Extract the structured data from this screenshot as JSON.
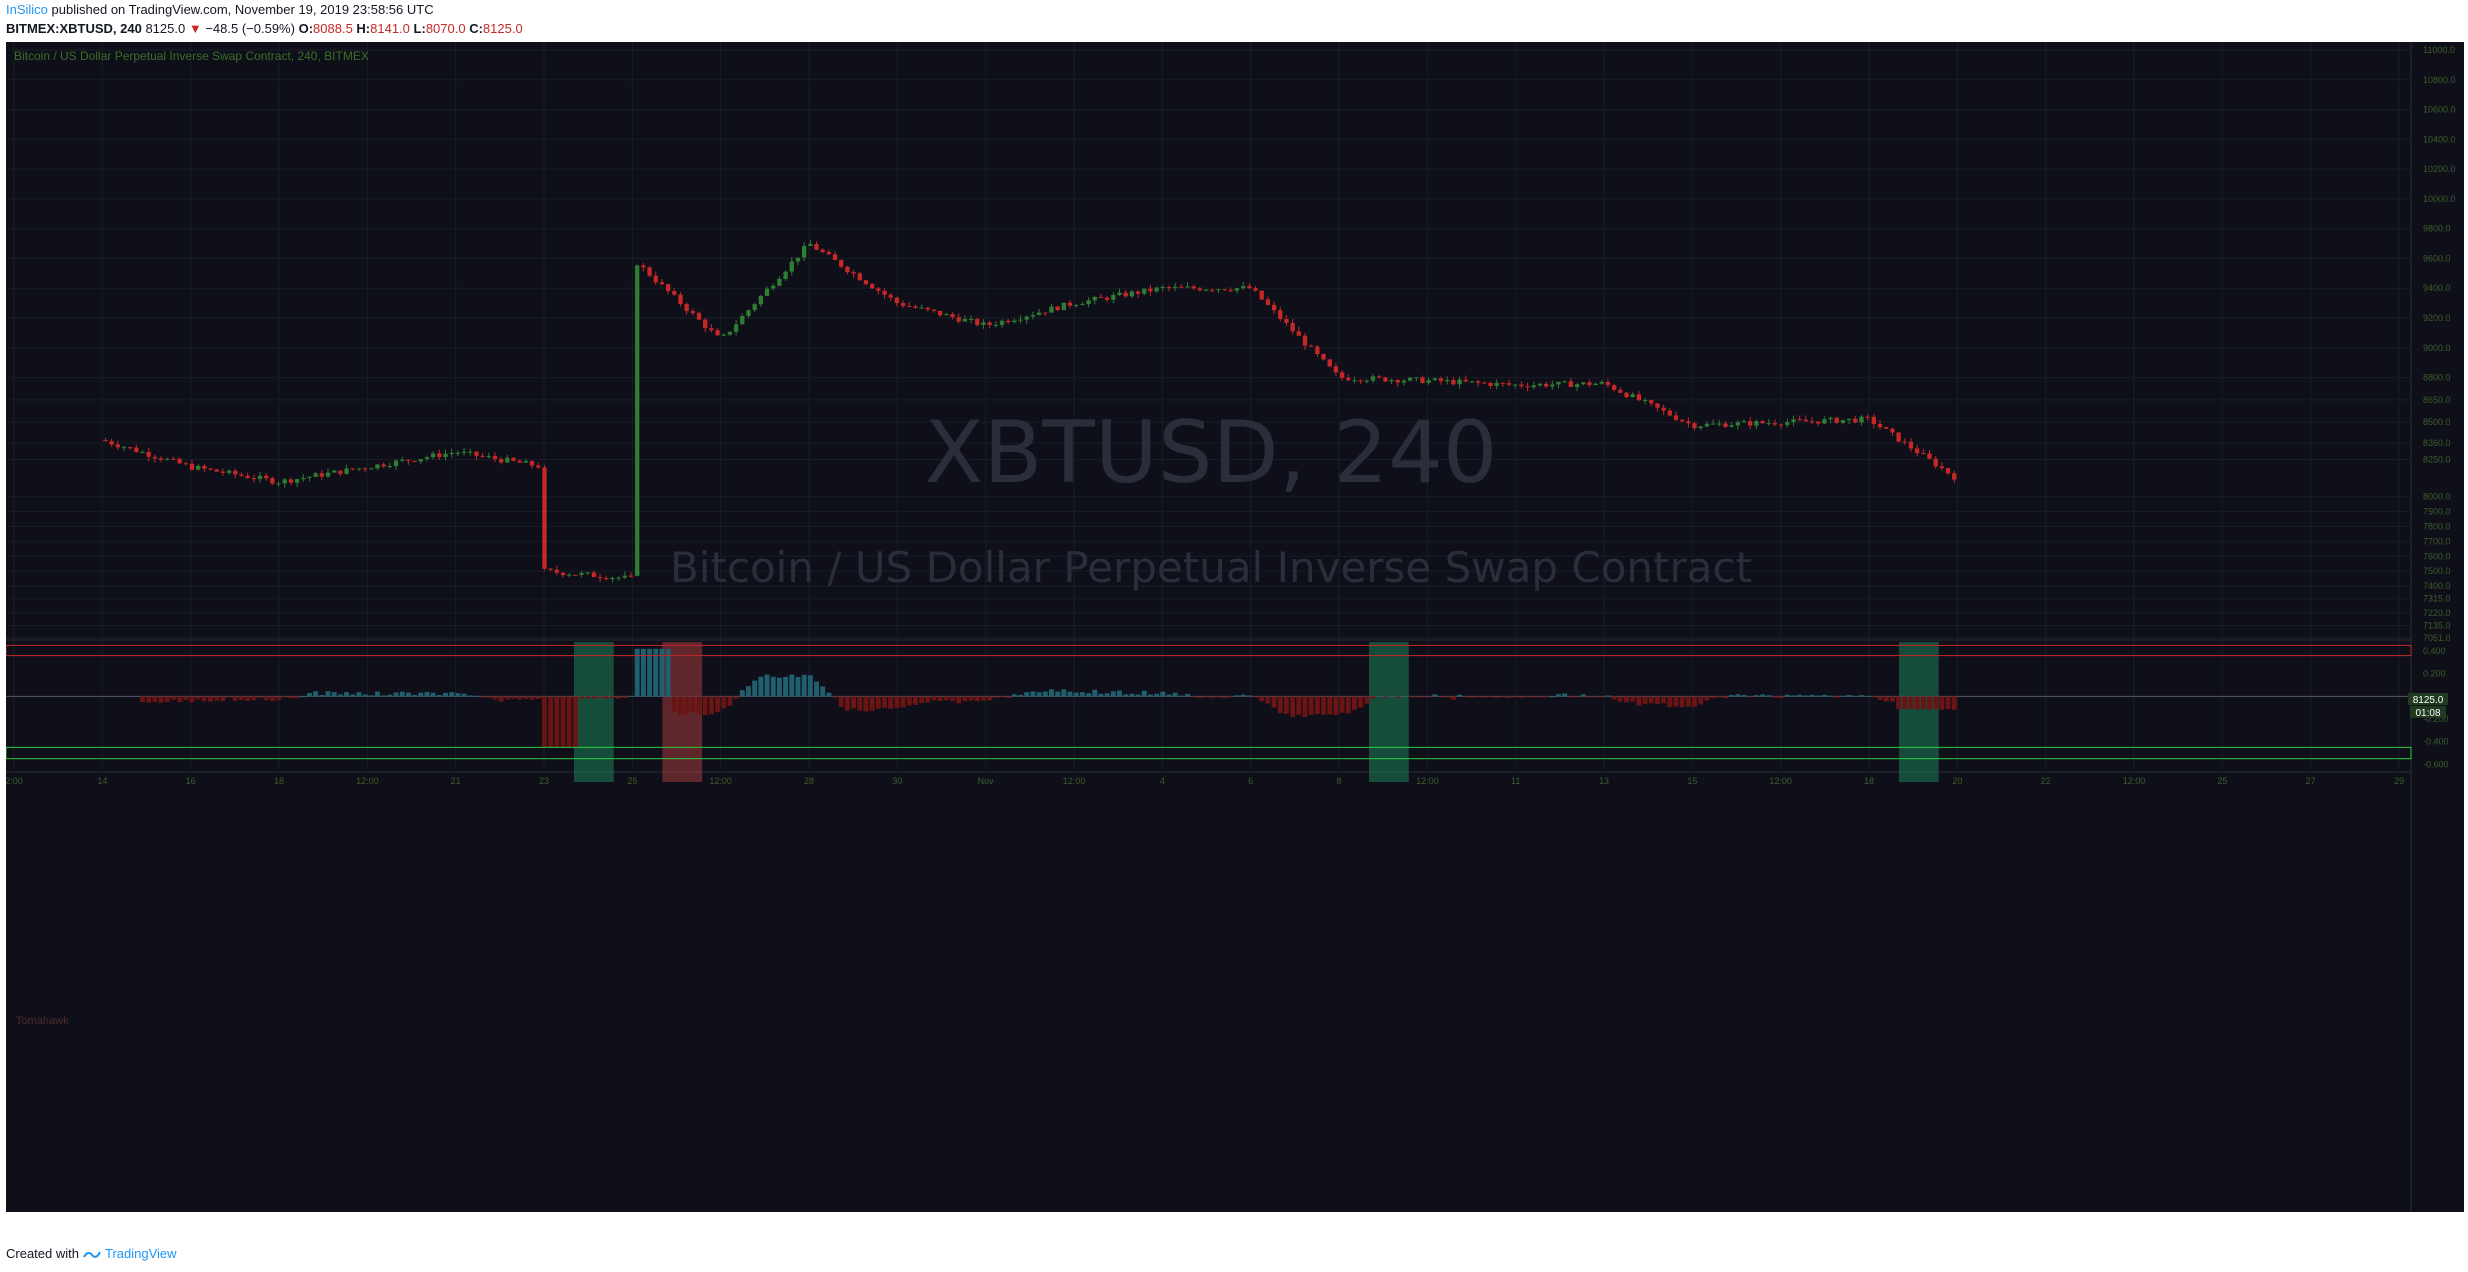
{
  "header": {
    "author": "InSilico",
    "published_text": "published on TradingView.com, November 19, 2019 23:58:56 UTC",
    "symbol": "BITMEX:XBTUSD, 240",
    "last": "8125.0",
    "change": "−48.5 (−0.59%)",
    "o_label": "O:",
    "o_val": "8088.5",
    "h_label": "H:",
    "h_val": "8141.0",
    "l_label": "L:",
    "l_val": "8070.0",
    "c_label": "C:",
    "c_val": "8125.0"
  },
  "footer": {
    "created_with": "Created with",
    "brand": "TradingView"
  },
  "colors": {
    "background": "#0f0f19",
    "grid": "#181c27",
    "up": "#2e7d32",
    "down": "#c62828",
    "axis_text": "#3b5e2a",
    "watermark": "#2a2d3a"
  },
  "chart_data": {
    "type": "candlestick",
    "title": "Bitcoin / US Dollar Perpetual Inverse Swap Contract, 240, BITMEX",
    "watermark_symbol": "XBTUSD, 240",
    "watermark_desc": "Bitcoin / US Dollar Perpetual Inverse Swap Contract",
    "last_price_label": "8125.0",
    "countdown_label": "01:08",
    "y_ticks": [
      "11000.0",
      "10800.0",
      "10600.0",
      "10400.0",
      "10200.0",
      "10000.0",
      "9800.0",
      "9600.0",
      "9400.0",
      "9200.0",
      "9000.0",
      "8800.0",
      "8650.0",
      "8500.0",
      "8360.0",
      "8250.0",
      "8000.0",
      "7900.0",
      "7800.0",
      "7700.0",
      "7600.0",
      "7500.0",
      "7400.0",
      "7315.0",
      "7220.0",
      "7135.0",
      "7051.0"
    ],
    "x_ticks": [
      "2:00",
      "14",
      "16",
      "18",
      "12:00",
      "21",
      "23",
      "25",
      "12:00",
      "28",
      "30",
      "Nov",
      "12:00",
      "4",
      "6",
      "8",
      "12:00",
      "11",
      "13",
      "15",
      "12:00",
      "18",
      "20",
      "22",
      "12:00",
      "25",
      "27",
      "29"
    ],
    "ylim": [
      7051,
      11000
    ],
    "anchors": [
      [
        "14",
        8380
      ],
      [
        "16",
        8200
      ],
      [
        "18",
        8100
      ],
      [
        "21",
        8300
      ],
      [
        "23",
        8200
      ],
      [
        "23",
        7500
      ],
      [
        "25",
        7450
      ],
      [
        "25",
        8200
      ],
      [
        "25",
        9600
      ],
      [
        "12:00",
        9050
      ],
      [
        "28",
        9700
      ],
      [
        "30",
        9300
      ],
      [
        "Nov",
        9150
      ],
      [
        "12:00",
        9300
      ],
      [
        "4",
        9400
      ],
      [
        "6",
        9400
      ],
      [
        "8",
        8800
      ],
      [
        "12:00",
        8780
      ],
      [
        "11",
        8750
      ],
      [
        "13",
        8760
      ],
      [
        "15",
        8480
      ],
      [
        "12:00",
        8500
      ],
      [
        "18",
        8520
      ],
      [
        "20",
        8120
      ]
    ],
    "indicator": {
      "name": "Tomahawk",
      "y_ticks": [
        "0.400",
        "0.200",
        "0.000",
        "-0.200",
        "-0.400",
        "-0.600"
      ],
      "ylim": [
        -0.65,
        0.48
      ],
      "upper_band": [
        0.36,
        0.45
      ],
      "lower_band": [
        -0.55,
        -0.45
      ],
      "highlights": [
        {
          "from": "23",
          "to": "25",
          "color": "#1e7f56"
        },
        {
          "from": "25",
          "to": "12:00",
          "color": "#a33a3a"
        },
        {
          "from": "8",
          "to": "12:00",
          "color": "#1e7f56"
        },
        {
          "from": "18",
          "to": "20",
          "color": "#1e7f56"
        }
      ]
    }
  }
}
